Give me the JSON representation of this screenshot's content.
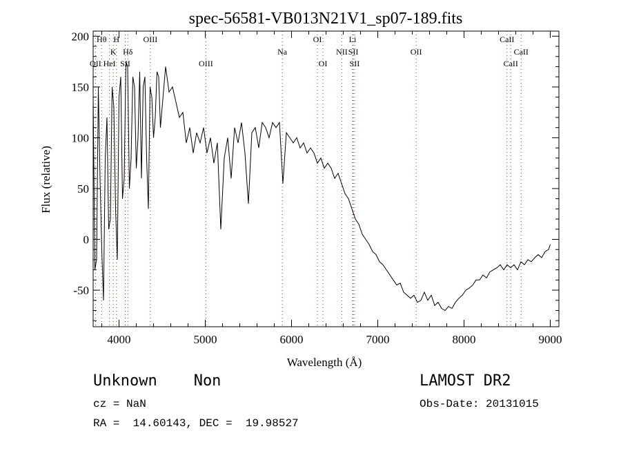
{
  "chart_data": {
    "type": "line",
    "title": "spec-56581-VB013N21V1_sp07-189.fits",
    "xlabel": "Wavelength (Å)",
    "ylabel": "Flux (relative)",
    "xlim": [
      3700,
      9100
    ],
    "ylim": [
      -86,
      205
    ],
    "xticks": [
      4000,
      5000,
      6000,
      7000,
      8000,
      9000
    ],
    "yticks": [
      -50,
      0,
      50,
      100,
      150,
      200
    ],
    "grid": false,
    "series": [
      {
        "name": "spectrum",
        "points": [
          [
            3700,
            140
          ],
          [
            3720,
            -30
          ],
          [
            3740,
            -20
          ],
          [
            3760,
            150
          ],
          [
            3780,
            60
          ],
          [
            3800,
            -10
          ],
          [
            3820,
            -60
          ],
          [
            3840,
            80
          ],
          [
            3860,
            120
          ],
          [
            3880,
            10
          ],
          [
            3900,
            20
          ],
          [
            3920,
            150
          ],
          [
            3940,
            130
          ],
          [
            3960,
            30
          ],
          [
            3980,
            -20
          ],
          [
            4000,
            140
          ],
          [
            4020,
            160
          ],
          [
            4040,
            40
          ],
          [
            4060,
            60
          ],
          [
            4080,
            175
          ],
          [
            4100,
            170
          ],
          [
            4120,
            50
          ],
          [
            4140,
            80
          ],
          [
            4160,
            160
          ],
          [
            4180,
            150
          ],
          [
            4200,
            70
          ],
          [
            4220,
            100
          ],
          [
            4240,
            165
          ],
          [
            4260,
            60
          ],
          [
            4280,
            150
          ],
          [
            4300,
            160
          ],
          [
            4320,
            80
          ],
          [
            4340,
            30
          ],
          [
            4360,
            150
          ],
          [
            4380,
            140
          ],
          [
            4400,
            100
          ],
          [
            4420,
            120
          ],
          [
            4440,
            165
          ],
          [
            4460,
            160
          ],
          [
            4480,
            110
          ],
          [
            4500,
            130
          ],
          [
            4540,
            170
          ],
          [
            4580,
            145
          ],
          [
            4620,
            150
          ],
          [
            4660,
            135
          ],
          [
            4700,
            120
          ],
          [
            4740,
            125
          ],
          [
            4780,
            95
          ],
          [
            4820,
            110
          ],
          [
            4860,
            85
          ],
          [
            4900,
            105
          ],
          [
            4940,
            95
          ],
          [
            4980,
            110
          ],
          [
            5020,
            85
          ],
          [
            5060,
            100
          ],
          [
            5100,
            75
          ],
          [
            5140,
            95
          ],
          [
            5180,
            10
          ],
          [
            5220,
            80
          ],
          [
            5260,
            100
          ],
          [
            5300,
            60
          ],
          [
            5340,
            110
          ],
          [
            5380,
            95
          ],
          [
            5420,
            115
          ],
          [
            5460,
            85
          ],
          [
            5500,
            35
          ],
          [
            5540,
            105
          ],
          [
            5580,
            110
          ],
          [
            5620,
            90
          ],
          [
            5660,
            115
          ],
          [
            5700,
            110
          ],
          [
            5740,
            100
          ],
          [
            5780,
            115
          ],
          [
            5820,
            110
          ],
          [
            5860,
            115
          ],
          [
            5900,
            55
          ],
          [
            5940,
            105
          ],
          [
            5980,
            100
          ],
          [
            6020,
            95
          ],
          [
            6060,
            100
          ],
          [
            6100,
            90
          ],
          [
            6140,
            95
          ],
          [
            6180,
            85
          ],
          [
            6220,
            90
          ],
          [
            6260,
            85
          ],
          [
            6300,
            75
          ],
          [
            6340,
            80
          ],
          [
            6380,
            70
          ],
          [
            6420,
            75
          ],
          [
            6460,
            70
          ],
          [
            6500,
            60
          ],
          [
            6540,
            65
          ],
          [
            6580,
            55
          ],
          [
            6620,
            45
          ],
          [
            6660,
            40
          ],
          [
            6700,
            30
          ],
          [
            6740,
            20
          ],
          [
            6780,
            15
          ],
          [
            6820,
            5
          ],
          [
            6860,
            0
          ],
          [
            6900,
            -5
          ],
          [
            6940,
            -12
          ],
          [
            6980,
            -15
          ],
          [
            7020,
            -22
          ],
          [
            7060,
            -25
          ],
          [
            7100,
            -30
          ],
          [
            7140,
            -35
          ],
          [
            7180,
            -40
          ],
          [
            7220,
            -45
          ],
          [
            7260,
            -43
          ],
          [
            7300,
            -52
          ],
          [
            7340,
            -55
          ],
          [
            7380,
            -58
          ],
          [
            7420,
            -55
          ],
          [
            7460,
            -62
          ],
          [
            7500,
            -60
          ],
          [
            7540,
            -52
          ],
          [
            7580,
            -60
          ],
          [
            7620,
            -55
          ],
          [
            7660,
            -65
          ],
          [
            7700,
            -62
          ],
          [
            7740,
            -68
          ],
          [
            7780,
            -70
          ],
          [
            7820,
            -66
          ],
          [
            7860,
            -68
          ],
          [
            7900,
            -62
          ],
          [
            7940,
            -58
          ],
          [
            7980,
            -55
          ],
          [
            8020,
            -50
          ],
          [
            8060,
            -48
          ],
          [
            8100,
            -45
          ],
          [
            8140,
            -40
          ],
          [
            8180,
            -40
          ],
          [
            8220,
            -35
          ],
          [
            8260,
            -38
          ],
          [
            8300,
            -32
          ],
          [
            8340,
            -30
          ],
          [
            8380,
            -28
          ],
          [
            8420,
            -25
          ],
          [
            8460,
            -30
          ],
          [
            8500,
            -25
          ],
          [
            8540,
            -28
          ],
          [
            8580,
            -25
          ],
          [
            8620,
            -30
          ],
          [
            8660,
            -22
          ],
          [
            8700,
            -25
          ],
          [
            8740,
            -20
          ],
          [
            8780,
            -22
          ],
          [
            8820,
            -18
          ],
          [
            8860,
            -15
          ],
          [
            8900,
            -18
          ],
          [
            8940,
            -12
          ],
          [
            8980,
            -10
          ],
          [
            9000,
            -5
          ]
        ]
      }
    ],
    "line_markers": [
      {
        "label": "Hθ",
        "wavelength": 3798,
        "row": 1
      },
      {
        "label": "H",
        "wavelength": 3970,
        "row": 1
      },
      {
        "label": "K",
        "wavelength": 3934,
        "row": 2
      },
      {
        "label": "Hδ",
        "wavelength": 4102,
        "row": 2
      },
      {
        "label": "OIII",
        "wavelength": 4363,
        "row": 1
      },
      {
        "label": "OII",
        "wavelength": 3727,
        "row": 3
      },
      {
        "label": "HeI",
        "wavelength": 3889,
        "row": 3
      },
      {
        "label": "SII",
        "wavelength": 4072,
        "row": 3
      },
      {
        "label": "OIII",
        "wavelength": 5007,
        "row": 3
      },
      {
        "label": "Na",
        "wavelength": 5893,
        "row": 2
      },
      {
        "label": "OI",
        "wavelength": 6300,
        "row": 1
      },
      {
        "label": "OI",
        "wavelength": 6364,
        "row": 3
      },
      {
        "label": "NII",
        "wavelength": 6583,
        "row": 2
      },
      {
        "label": "Li",
        "wavelength": 6708,
        "row": 1
      },
      {
        "label": "SII",
        "wavelength": 6716,
        "row": 2
      },
      {
        "label": "SII",
        "wavelength": 6731,
        "row": 3
      },
      {
        "label": "OII",
        "wavelength": 7445,
        "row": 2
      },
      {
        "label": "CaII",
        "wavelength": 8498,
        "row": 1
      },
      {
        "label": "CaII",
        "wavelength": 8542,
        "row": 3
      },
      {
        "label": "CaII",
        "wavelength": 8662,
        "row": 2
      }
    ]
  },
  "info": {
    "class_label": "Unknown    Non",
    "survey": "LAMOST DR2",
    "cz": "cz = NaN",
    "obs_date": "Obs-Date: 20131015",
    "coords": "RA =  14.60143, DEC =  19.98527"
  }
}
